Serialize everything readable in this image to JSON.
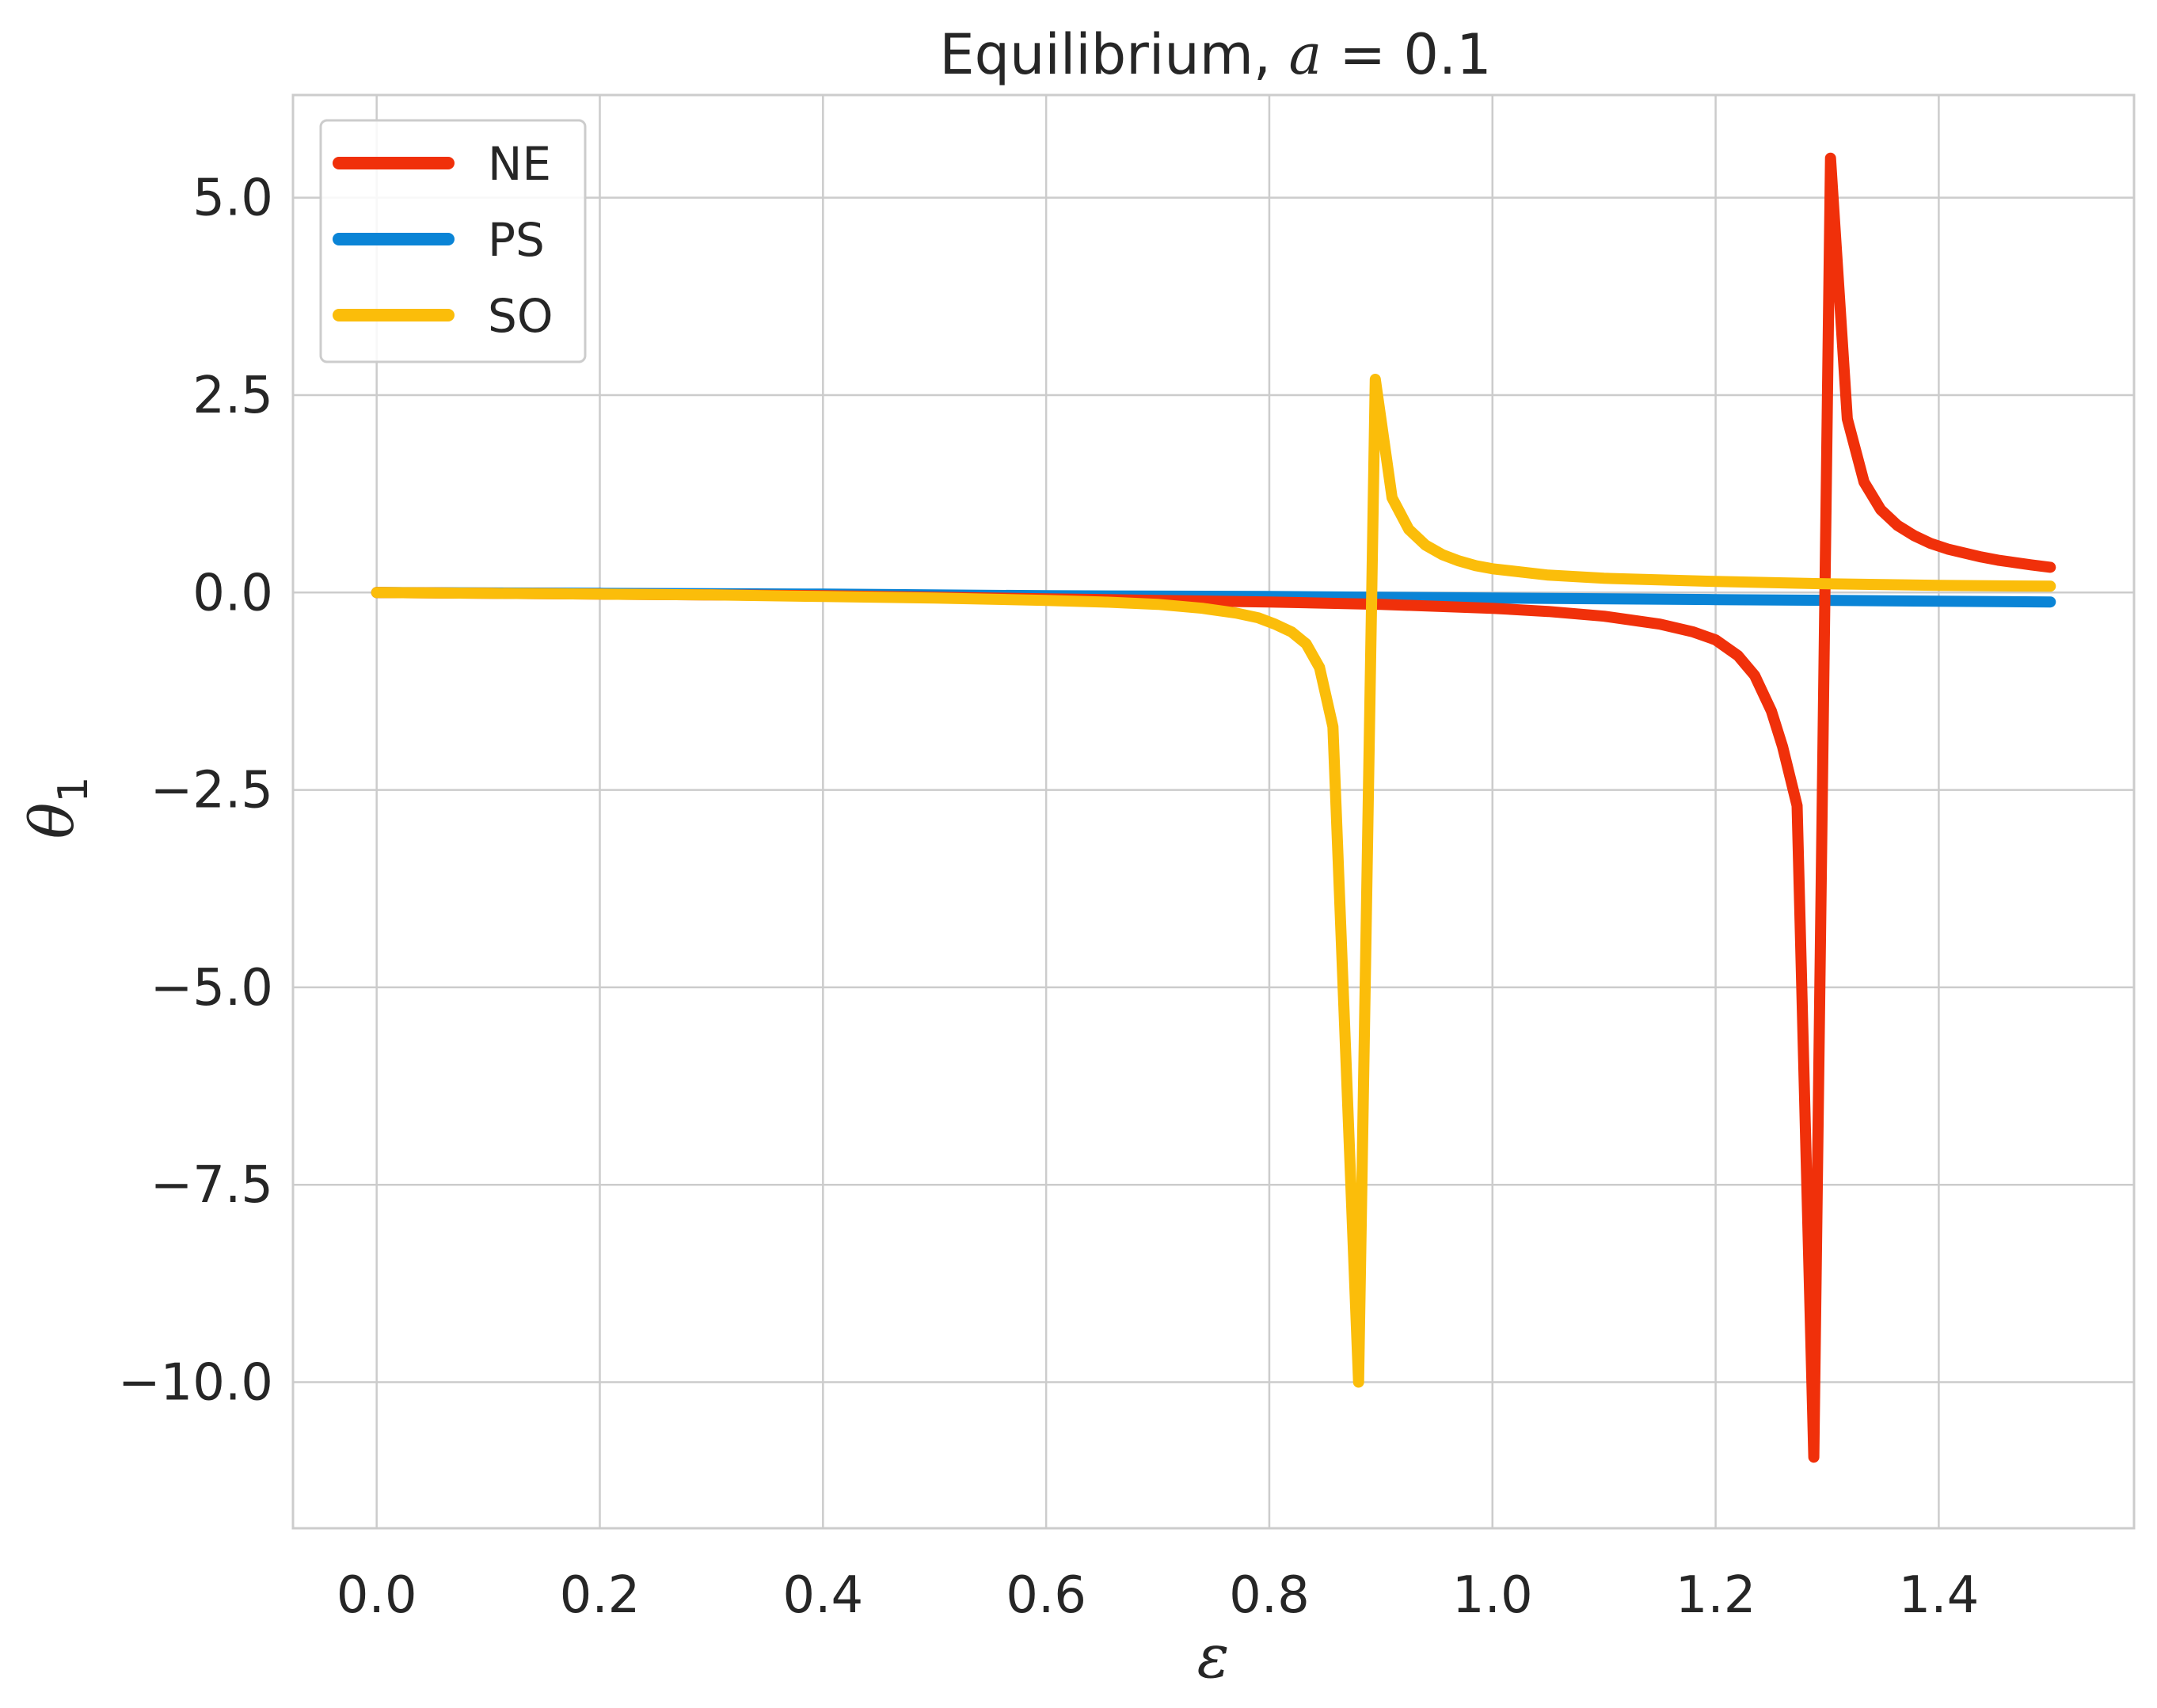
{
  "chart_data": {
    "type": "line",
    "title_prefix": "Equilibrium, ",
    "title_var": "a",
    "title_eq": " = 0.1",
    "xlabel": "ε",
    "ylabel_base": "θ",
    "ylabel_sub": "1",
    "xlim": [
      -0.075,
      1.575
    ],
    "ylim": [
      -11.85,
      6.3
    ],
    "xticks": [
      0.0,
      0.2,
      0.4,
      0.6,
      0.8,
      1.0,
      1.2,
      1.4
    ],
    "xtick_labels": [
      "0.0",
      "0.2",
      "0.4",
      "0.6",
      "0.8",
      "1.0",
      "1.2",
      "1.4"
    ],
    "yticks": [
      5.0,
      2.5,
      0.0,
      -2.5,
      -5.0,
      -7.5,
      -10.0
    ],
    "ytick_labels": [
      "5.0",
      "2.5",
      "0.0",
      "−2.5",
      "−5.0",
      "−7.5",
      "−10.0"
    ],
    "grid": true,
    "legend_position": "top-left",
    "series": [
      {
        "name": "NE",
        "color": "#f0300a",
        "x": [
          0.0,
          0.1,
          0.2,
          0.3,
          0.4,
          0.5,
          0.6,
          0.7,
          0.8,
          0.9,
          1.0,
          1.05,
          1.1,
          1.15,
          1.18,
          1.2,
          1.22,
          1.235,
          1.25,
          1.26,
          1.273,
          1.288,
          1.303,
          1.318,
          1.333,
          1.348,
          1.363,
          1.378,
          1.393,
          1.408,
          1.423,
          1.438,
          1.453,
          1.468,
          1.483,
          1.5
        ],
        "y": [
          0.0,
          -0.01,
          -0.02,
          -0.03,
          -0.04,
          -0.06,
          -0.08,
          -0.1,
          -0.12,
          -0.15,
          -0.2,
          -0.24,
          -0.3,
          -0.4,
          -0.5,
          -0.6,
          -0.8,
          -1.05,
          -1.5,
          -1.95,
          -2.7,
          -10.95,
          5.5,
          2.2,
          1.4,
          1.05,
          0.85,
          0.72,
          0.62,
          0.55,
          0.5,
          0.45,
          0.41,
          0.38,
          0.35,
          0.32
        ]
      },
      {
        "name": "PS",
        "color": "#0a84d6",
        "x": [
          0.0,
          0.2,
          0.4,
          0.6,
          0.8,
          1.0,
          1.2,
          1.4,
          1.5
        ],
        "y": [
          0.0,
          -0.01,
          -0.02,
          -0.04,
          -0.05,
          -0.07,
          -0.09,
          -0.11,
          -0.12
        ]
      },
      {
        "name": "SO",
        "color": "#fbbd0a",
        "x": [
          0.0,
          0.1,
          0.2,
          0.3,
          0.4,
          0.5,
          0.6,
          0.65,
          0.7,
          0.74,
          0.77,
          0.79,
          0.805,
          0.82,
          0.833,
          0.845,
          0.857,
          0.88,
          0.895,
          0.91,
          0.925,
          0.94,
          0.955,
          0.97,
          0.985,
          1.0,
          1.05,
          1.1,
          1.2,
          1.3,
          1.4,
          1.5
        ],
        "y": [
          0.0,
          -0.01,
          -0.02,
          -0.03,
          -0.05,
          -0.07,
          -0.1,
          -0.12,
          -0.15,
          -0.2,
          -0.26,
          -0.32,
          -0.4,
          -0.5,
          -0.65,
          -0.95,
          -1.7,
          -10.0,
          2.7,
          1.2,
          0.8,
          0.6,
          0.48,
          0.4,
          0.34,
          0.3,
          0.22,
          0.18,
          0.14,
          0.11,
          0.09,
          0.08
        ]
      }
    ]
  }
}
